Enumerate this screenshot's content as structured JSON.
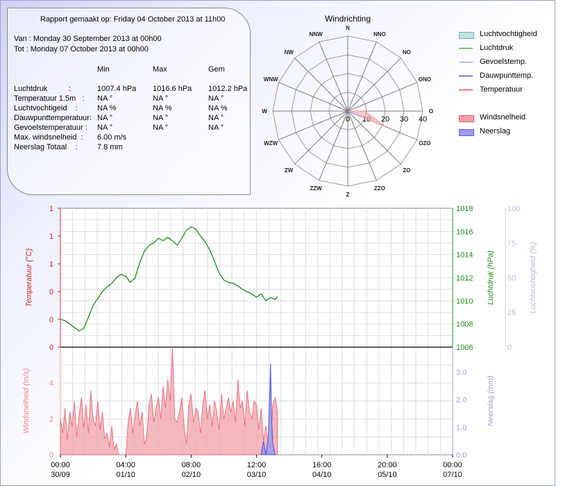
{
  "report": {
    "heading": "Rapport gemaakt op: Friday 04 October 2013 at 11h00",
    "from": "Van : Monday 30 September 2013 at 00h00",
    "to": "Tot : Monday 07 October 2013 at 00h00",
    "col_min": "Min",
    "col_max": "Max",
    "col_avg": "Gem",
    "rows": [
      {
        "label": "Luchtdruk          :",
        "min": "1007.4 hPa",
        "max": "1016.6 hPa",
        "avg": "1012.2 hPa"
      },
      {
        "label": "Temperatuur 1.5m   :",
        "min": "NA °",
        "max": "NA °",
        "avg": "NA °"
      },
      {
        "label": "Luchtvochtigeid    :",
        "min": "NA %",
        "max": "NA %",
        "avg": "NA %"
      },
      {
        "label": "Dauwpunttemperatuur:",
        "min": "NA °",
        "max": "NA °",
        "avg": "NA °"
      },
      {
        "label": "Gevoelstemperatuur :",
        "min": "NA °",
        "max": "NA °",
        "avg": "NA °"
      },
      {
        "label": "Max. windsnelheid  :",
        "min": "6.00 m/s"
      },
      {
        "label": "Neerslag Totaal    :",
        "min": "7.8 mm"
      }
    ]
  },
  "legend": [
    {
      "label": "Luchtvochtigheid",
      "kind": "area",
      "color": "#b9e7de",
      "border": "#7a9ccf"
    },
    {
      "label": "Luchtdruk",
      "kind": "line",
      "color": "#1a8c1a"
    },
    {
      "label": "Gevoelstemp.",
      "kind": "line",
      "color": "#8b8bd8"
    },
    {
      "label": "Dauwpunttemp.",
      "kind": "line",
      "color": "#1a1aa0"
    },
    {
      "label": "Temperatuur",
      "kind": "line",
      "color": "#e02020"
    },
    {
      "label": "Windsnelheid",
      "kind": "area",
      "color": "#f2a0a8",
      "border": "#d06070"
    },
    {
      "label": "Neerslag",
      "kind": "area",
      "color": "#9a9af0",
      "border": "#6060d0"
    }
  ],
  "chart_data": [
    {
      "type": "radar",
      "title": "Windrichting",
      "directions": [
        "N",
        "NNO",
        "NO",
        "ONO",
        "O",
        "OZO",
        "ZO",
        "ZZO",
        "Z",
        "ZZW",
        "ZW",
        "WZW",
        "W",
        "WNW",
        "NW",
        "NNW"
      ],
      "radial_ticks": [
        0,
        10,
        20,
        30,
        40
      ],
      "rlim": [
        0,
        40
      ],
      "series": [
        {
          "name": "Windsnelheid",
          "values": [
            0,
            0,
            0,
            0,
            9,
            22,
            0,
            0,
            0,
            0,
            0,
            0,
            0,
            0,
            0,
            0
          ],
          "color": "#f2a0a8"
        },
        {
          "name": "Neerslag",
          "values": [
            0,
            0,
            0,
            0,
            0,
            8,
            0,
            0,
            0,
            0,
            0,
            0,
            0,
            0,
            0,
            0
          ],
          "color": "#9a9af0"
        }
      ]
    },
    {
      "type": "line",
      "x_tick_labels": [
        "00:00\n30/09",
        "04:00\n01/10",
        "08:00\n02/10",
        "12:00\n03/10",
        "16:00\n04/10",
        "20:00\n05/10",
        "00:00\n07/10"
      ],
      "xlim_hours": [
        0,
        168
      ],
      "left_axis": {
        "label": "Temperatuur (°C)",
        "ticks": [
          "1",
          "1",
          "1",
          "0",
          "0",
          "0"
        ],
        "color": "#cc2020"
      },
      "right_axis_1": {
        "label": "Luchtdruk (hPa)",
        "ticks": [
          1006,
          1008,
          1010,
          1012,
          1014,
          1016,
          1018
        ],
        "ylim": [
          1006,
          1018
        ],
        "color": "#1a8c1a"
      },
      "right_axis_2": {
        "label": "Luchtvochtigheid (%)",
        "ticks": [
          0,
          25,
          50,
          75,
          100
        ],
        "ylim": [
          0,
          100
        ],
        "color": "#b8b8d8"
      },
      "series": [
        {
          "name": "Luchtdruk",
          "axis": "right_axis_1",
          "color": "#1a8c1a",
          "x": [
            0,
            2,
            4,
            6,
            8,
            10,
            12,
            14,
            16,
            18,
            20,
            22,
            24,
            26,
            28,
            30,
            32,
            34,
            36,
            38,
            40,
            42,
            44,
            46,
            48,
            50,
            52,
            54,
            56,
            58,
            60,
            62,
            64,
            66,
            68,
            70,
            72,
            74,
            76,
            78,
            80,
            82,
            84,
            86,
            88,
            90,
            92,
            93
          ],
          "y": [
            1008.4,
            1008.3,
            1008.0,
            1007.7,
            1007.4,
            1007.6,
            1008.6,
            1009.6,
            1010.2,
            1010.8,
            1011.2,
            1011.5,
            1012.0,
            1012.3,
            1012.1,
            1011.6,
            1012.0,
            1013.3,
            1014.3,
            1014.8,
            1015.0,
            1015.4,
            1015.2,
            1015.5,
            1015.2,
            1014.8,
            1015.4,
            1016.1,
            1016.4,
            1016.2,
            1015.6,
            1015.1,
            1014.4,
            1013.4,
            1012.4,
            1011.8,
            1011.6,
            1011.5,
            1011.3,
            1011.0,
            1010.8,
            1010.6,
            1010.3,
            1010.6,
            1010.0,
            1010.3,
            1010.1,
            1010.4
          ]
        }
      ]
    },
    {
      "type": "area",
      "x_tick_labels": [
        "00:00\n30/09",
        "04:00\n01/10",
        "08:00\n02/10",
        "12:00\n03/10",
        "16:00\n04/10",
        "20:00\n05/10",
        "00:00\n07/10"
      ],
      "xlim_hours": [
        0,
        168
      ],
      "left_axis": {
        "label": "Windsnelheid (m/s)",
        "ticks": [
          0,
          2,
          4
        ],
        "ylim": [
          0,
          6
        ],
        "color": "#f08080"
      },
      "right_axis": {
        "label": "Neerslag (mm)",
        "ticks": [
          "0.0",
          "1.0",
          "2.0",
          "3.0"
        ],
        "ylim": [
          0,
          3.9
        ],
        "color": "#a0a0d0"
      },
      "series": [
        {
          "name": "Windsnelheid",
          "axis": "left",
          "color": "#f2a0a8",
          "x": [
            0,
            1,
            2,
            3,
            4,
            5,
            6,
            7,
            8,
            9,
            10,
            11,
            12,
            13,
            14,
            15,
            16,
            17,
            18,
            19,
            20,
            21,
            22,
            23,
            24,
            25,
            26,
            27,
            28,
            29,
            30,
            31,
            32,
            33,
            34,
            35,
            36,
            37,
            38,
            39,
            40,
            41,
            42,
            43,
            44,
            45,
            46,
            47,
            48,
            49,
            50,
            51,
            52,
            53,
            54,
            55,
            56,
            57,
            58,
            59,
            60,
            61,
            62,
            63,
            64,
            65,
            66,
            67,
            68,
            69,
            70,
            71,
            72,
            73,
            74,
            75,
            76,
            77,
            78,
            79,
            80,
            81,
            82,
            83,
            84,
            85,
            86,
            87,
            88,
            89,
            90,
            91,
            92,
            93
          ],
          "y": [
            2.0,
            1.2,
            2.6,
            0.8,
            2.4,
            1.6,
            3.0,
            1.0,
            2.2,
            3.2,
            1.5,
            2.8,
            1.2,
            3.6,
            2.0,
            1.6,
            3.0,
            1.4,
            2.4,
            0.9,
            1.2,
            0.4,
            1.6,
            0.3,
            0.6,
            0,
            0,
            0,
            0,
            1.8,
            2.6,
            1.2,
            2.2,
            3.0,
            1.6,
            2.4,
            0.6,
            1.0,
            2.8,
            3.4,
            1.8,
            2.6,
            3.2,
            2.0,
            3.8,
            2.6,
            4.2,
            3.0,
            6.0,
            2.0,
            1.8,
            2.4,
            3.2,
            1.6,
            0.6,
            2.8,
            3.4,
            1.8,
            2.6,
            2.4,
            1.2,
            2.8,
            3.6,
            2.0,
            2.8,
            1.6,
            3.0,
            2.4,
            1.4,
            3.4,
            2.0,
            2.6,
            3.2,
            2.4,
            3.0,
            1.8,
            4.2,
            2.6,
            3.0,
            1.6,
            3.6,
            2.4,
            2.0,
            3.0,
            2.8,
            1.4,
            2.6,
            0.8,
            1.6,
            0.6,
            0.4,
            2.8,
            3.2,
            2.4
          ]
        },
        {
          "name": "Neerslag",
          "axis": "right",
          "color": "#9a9af0",
          "x": [
            86,
            87,
            88,
            89,
            89.5,
            90,
            90.5,
            91,
            92
          ],
          "y": [
            0,
            0.5,
            0,
            0.6,
            1.8,
            3.3,
            1.2,
            0.4,
            0
          ]
        }
      ]
    }
  ]
}
